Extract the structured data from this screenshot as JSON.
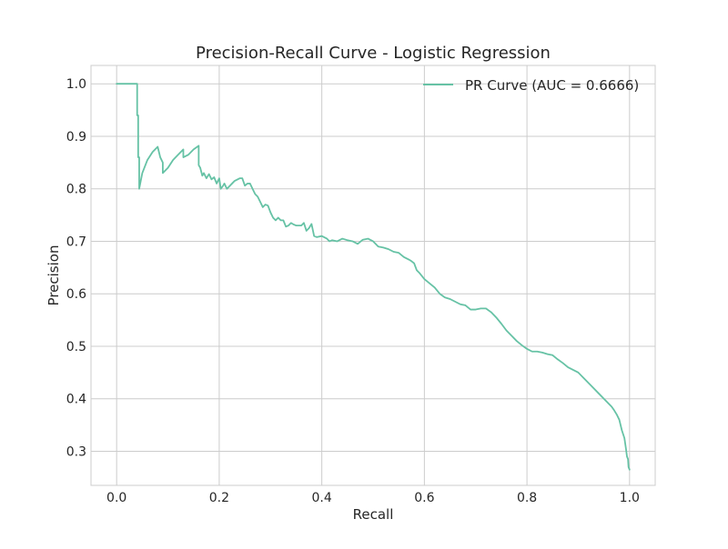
{
  "chart_data": {
    "type": "line",
    "title": "Precision-Recall Curve - Logistic Regression",
    "xlabel": "Recall",
    "ylabel": "Precision",
    "xlim": [
      -0.05,
      1.05
    ],
    "ylim": [
      0.235,
      1.035
    ],
    "xticks": [
      0.0,
      0.2,
      0.4,
      0.6,
      0.8,
      1.0
    ],
    "xtick_labels": [
      "0.0",
      "0.2",
      "0.4",
      "0.6",
      "0.8",
      "1.0"
    ],
    "yticks": [
      0.3,
      0.4,
      0.5,
      0.6,
      0.7,
      0.8,
      0.9,
      1.0
    ],
    "ytick_labels": [
      "0.3",
      "0.4",
      "0.5",
      "0.6",
      "0.7",
      "0.8",
      "0.9",
      "1.0"
    ],
    "grid": true,
    "legend_position": "top-right",
    "series": [
      {
        "name": "PR Curve (AUC = 0.6666)",
        "color": "#66c2a5",
        "x": [
          0.0,
          0.04,
          0.04,
          0.042,
          0.042,
          0.044,
          0.044,
          0.05,
          0.06,
          0.07,
          0.08,
          0.08,
          0.085,
          0.09,
          0.09,
          0.1,
          0.11,
          0.12,
          0.13,
          0.13,
          0.14,
          0.15,
          0.16,
          0.16,
          0.163,
          0.167,
          0.17,
          0.175,
          0.18,
          0.185,
          0.19,
          0.195,
          0.2,
          0.203,
          0.207,
          0.21,
          0.215,
          0.22,
          0.225,
          0.23,
          0.24,
          0.245,
          0.25,
          0.255,
          0.26,
          0.265,
          0.27,
          0.275,
          0.28,
          0.285,
          0.29,
          0.295,
          0.3,
          0.305,
          0.31,
          0.315,
          0.32,
          0.325,
          0.33,
          0.335,
          0.34,
          0.345,
          0.35,
          0.36,
          0.365,
          0.37,
          0.375,
          0.38,
          0.385,
          0.39,
          0.4,
          0.41,
          0.415,
          0.42,
          0.43,
          0.44,
          0.45,
          0.46,
          0.47,
          0.48,
          0.49,
          0.5,
          0.51,
          0.52,
          0.53,
          0.54,
          0.55,
          0.56,
          0.57,
          0.575,
          0.58,
          0.585,
          0.59,
          0.6,
          0.61,
          0.62,
          0.63,
          0.64,
          0.65,
          0.66,
          0.67,
          0.68,
          0.69,
          0.7,
          0.71,
          0.72,
          0.73,
          0.74,
          0.75,
          0.76,
          0.77,
          0.78,
          0.79,
          0.8,
          0.81,
          0.82,
          0.83,
          0.84,
          0.85,
          0.86,
          0.87,
          0.88,
          0.89,
          0.9,
          0.91,
          0.92,
          0.93,
          0.94,
          0.95,
          0.96,
          0.965,
          0.97,
          0.975,
          0.98,
          0.985,
          0.99,
          0.993,
          0.995,
          0.997,
          0.998,
          1.0
        ],
        "y": [
          1.0,
          1.0,
          0.94,
          0.94,
          0.86,
          0.86,
          0.8,
          0.83,
          0.855,
          0.87,
          0.88,
          0.88,
          0.86,
          0.85,
          0.83,
          0.84,
          0.855,
          0.865,
          0.875,
          0.86,
          0.865,
          0.875,
          0.882,
          0.845,
          0.84,
          0.825,
          0.83,
          0.82,
          0.828,
          0.818,
          0.822,
          0.81,
          0.82,
          0.8,
          0.805,
          0.81,
          0.8,
          0.805,
          0.81,
          0.815,
          0.82,
          0.82,
          0.806,
          0.81,
          0.81,
          0.8,
          0.79,
          0.785,
          0.775,
          0.765,
          0.77,
          0.768,
          0.755,
          0.745,
          0.74,
          0.745,
          0.74,
          0.74,
          0.728,
          0.73,
          0.735,
          0.732,
          0.73,
          0.73,
          0.735,
          0.72,
          0.725,
          0.733,
          0.71,
          0.708,
          0.71,
          0.705,
          0.7,
          0.702,
          0.7,
          0.705,
          0.702,
          0.7,
          0.695,
          0.703,
          0.705,
          0.7,
          0.69,
          0.688,
          0.685,
          0.68,
          0.678,
          0.67,
          0.665,
          0.662,
          0.658,
          0.645,
          0.64,
          0.628,
          0.62,
          0.612,
          0.6,
          0.593,
          0.59,
          0.585,
          0.58,
          0.578,
          0.57,
          0.57,
          0.572,
          0.572,
          0.565,
          0.555,
          0.543,
          0.53,
          0.52,
          0.51,
          0.502,
          0.495,
          0.49,
          0.49,
          0.488,
          0.485,
          0.483,
          0.475,
          0.468,
          0.46,
          0.455,
          0.45,
          0.44,
          0.43,
          0.42,
          0.41,
          0.4,
          0.39,
          0.385,
          0.378,
          0.37,
          0.36,
          0.34,
          0.325,
          0.305,
          0.29,
          0.285,
          0.27,
          0.265
        ]
      }
    ]
  }
}
